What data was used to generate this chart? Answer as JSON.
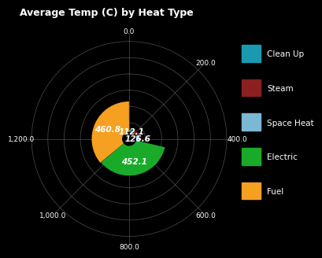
{
  "title": "Average Temp (C) by Heat Type",
  "title_color": "white",
  "background_color": "#000000",
  "categories": [
    "Clean Up",
    "Steam",
    "Space Heat",
    "Electric",
    "Fuel"
  ],
  "values": [
    112.1,
    126.6,
    126.6,
    452.1,
    460.8
  ],
  "colors": [
    "#1a9ab0",
    "#8b2020",
    "#7ab8d4",
    "#1aaa2a",
    "#f5a020"
  ],
  "label_values": [
    "112.1",
    "",
    "126.6",
    "452.1",
    "460.8"
  ],
  "r_ticks": [
    200,
    400,
    600,
    800,
    1000,
    1200
  ],
  "r_max": 1300,
  "r_inner": 80,
  "spoke_labels": [
    "0.0",
    "200.0",
    "400.0",
    "600.0",
    "800.0",
    "1,000.0",
    "1,200.0"
  ],
  "spoke_angles_deg": [
    0,
    45,
    90,
    135,
    180,
    225,
    270
  ],
  "legend_colors": [
    "#1a9ab0",
    "#8b2020",
    "#7ab8d4",
    "#1aaa2a",
    "#f5a020"
  ]
}
